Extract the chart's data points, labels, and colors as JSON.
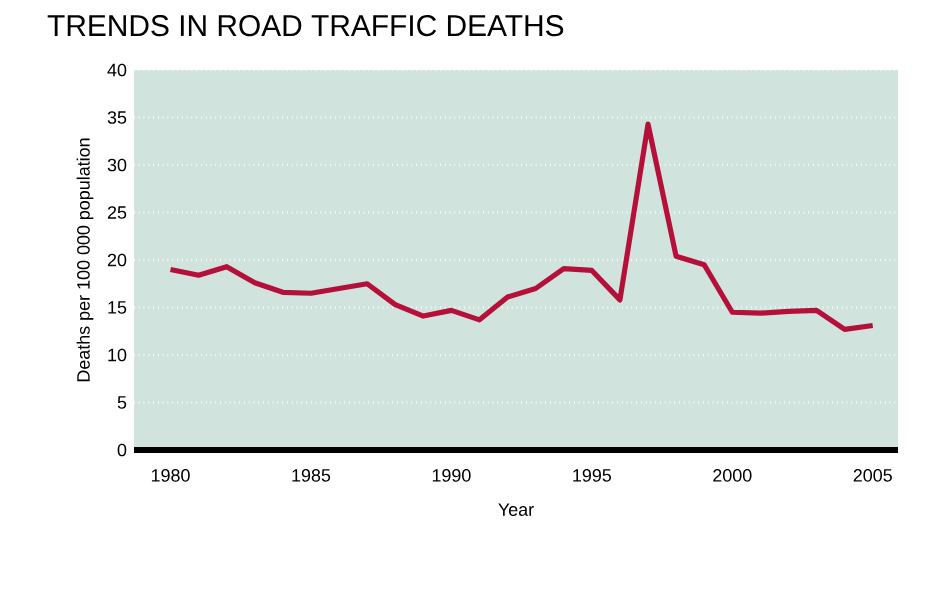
{
  "chart_data": {
    "type": "line",
    "title": "TRENDS IN ROAD TRAFFIC DEATHS",
    "xlabel": "Year",
    "ylabel": "Deaths per 100 000 population",
    "x": [
      1980,
      1981,
      1982,
      1983,
      1984,
      1985,
      1986,
      1987,
      1988,
      1989,
      1990,
      1991,
      1992,
      1993,
      1994,
      1995,
      1996,
      1997,
      1998,
      1999,
      2000,
      2001,
      2002,
      2003,
      2004,
      2005
    ],
    "series": [
      {
        "color": "#b5103a",
        "values": [
          19,
          18.4,
          19.3,
          17.6,
          16.6,
          16.5,
          17.0,
          17.5,
          15.3,
          14.1,
          14.7,
          13.7,
          16.1,
          17.0,
          19.1,
          18.9,
          15.8,
          34.3,
          20.4,
          19.5,
          14.5,
          14.4,
          14.6,
          14.7,
          12.7,
          13.1
        ]
      }
    ],
    "xlim": [
      1978.7,
      2005.9
    ],
    "ylim": [
      0,
      40
    ],
    "xticks": [
      1980,
      1985,
      1990,
      1995,
      2000,
      2005
    ],
    "yticks": [
      0,
      5,
      10,
      15,
      20,
      25,
      30,
      35,
      40
    ],
    "grid": "y",
    "marker": "none",
    "line_style": "solid"
  }
}
